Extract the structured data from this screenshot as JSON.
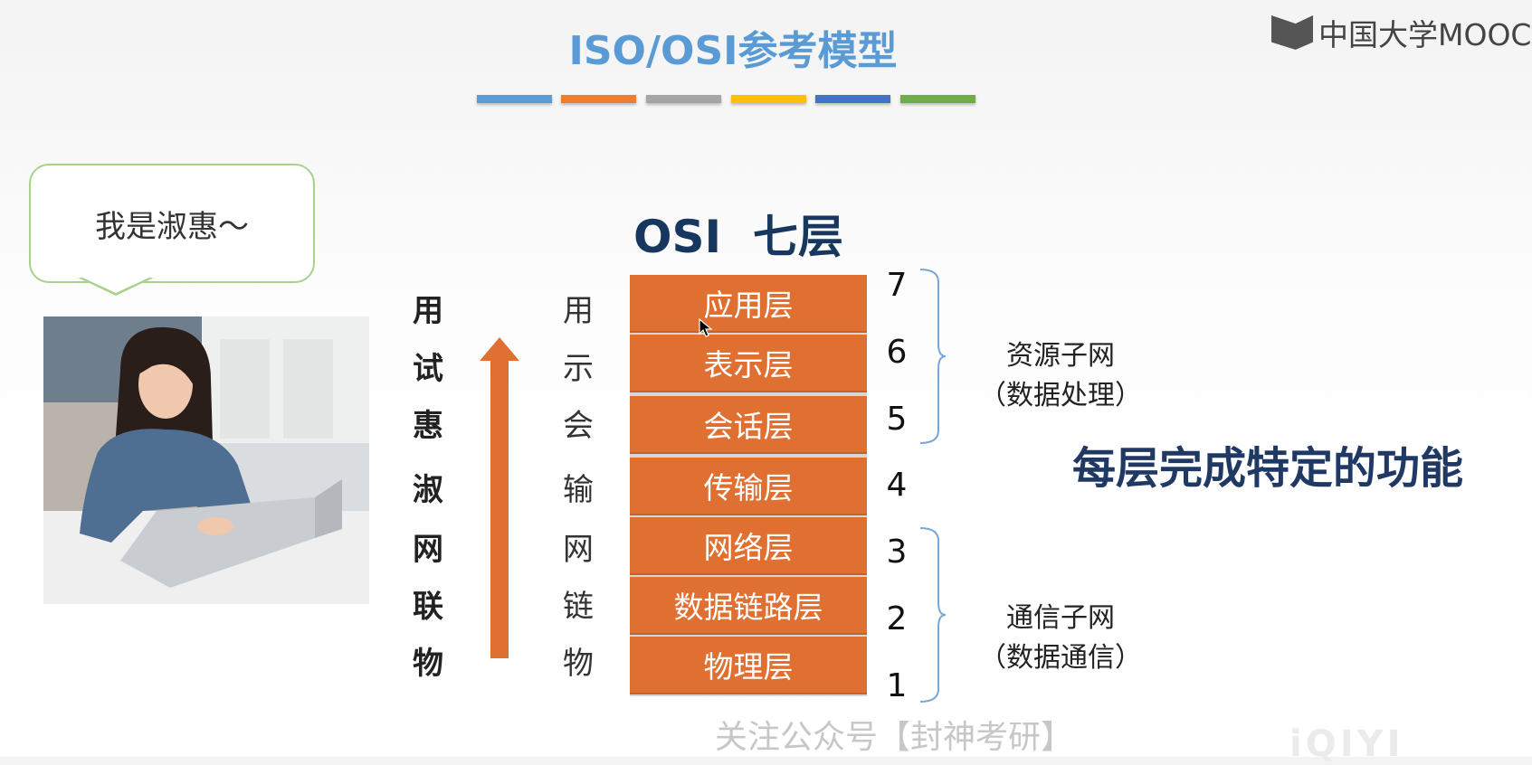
{
  "slide": {
    "title": "ISO/OSI参考模型",
    "title_bar_colors": [
      "#5b9bd5",
      "#ed7d31",
      "#a5a5a5",
      "#ffc000",
      "#4472c4",
      "#70ad47"
    ]
  },
  "logo": {
    "text": "中国大学MOOC",
    "icon": "mooc-book-icon"
  },
  "speech_bubble": {
    "text": "我是淑惠～"
  },
  "osi_heading": "OSI  七层",
  "mnemonic": [
    "用",
    "试",
    "惠",
    "淑",
    "网",
    "联",
    "物"
  ],
  "layer_short": [
    "用",
    "示",
    "会",
    "输",
    "网",
    "链",
    "物"
  ],
  "layers": [
    {
      "name": "应用层",
      "number": "7"
    },
    {
      "name": "表示层",
      "number": "6"
    },
    {
      "name": "会话层",
      "number": "5"
    },
    {
      "name": "传输层",
      "number": "4"
    },
    {
      "name": "网络层",
      "number": "3"
    },
    {
      "name": "数据链路层",
      "number": "2"
    },
    {
      "name": "物理层",
      "number": "1"
    }
  ],
  "groups": {
    "resource": {
      "line1": "资源子网",
      "line2": "（数据处理）"
    },
    "communication": {
      "line1": "通信子网",
      "line2": "（数据通信）"
    }
  },
  "highlight_text": "每层完成特定的功能",
  "watermark": "关注公众号【封神考研】",
  "iqiyi": "iQIYI",
  "colors": {
    "layer": "#e07031",
    "heading": "#17375e",
    "bracket": "#7aa6d6",
    "title": "#5b9bd5"
  }
}
